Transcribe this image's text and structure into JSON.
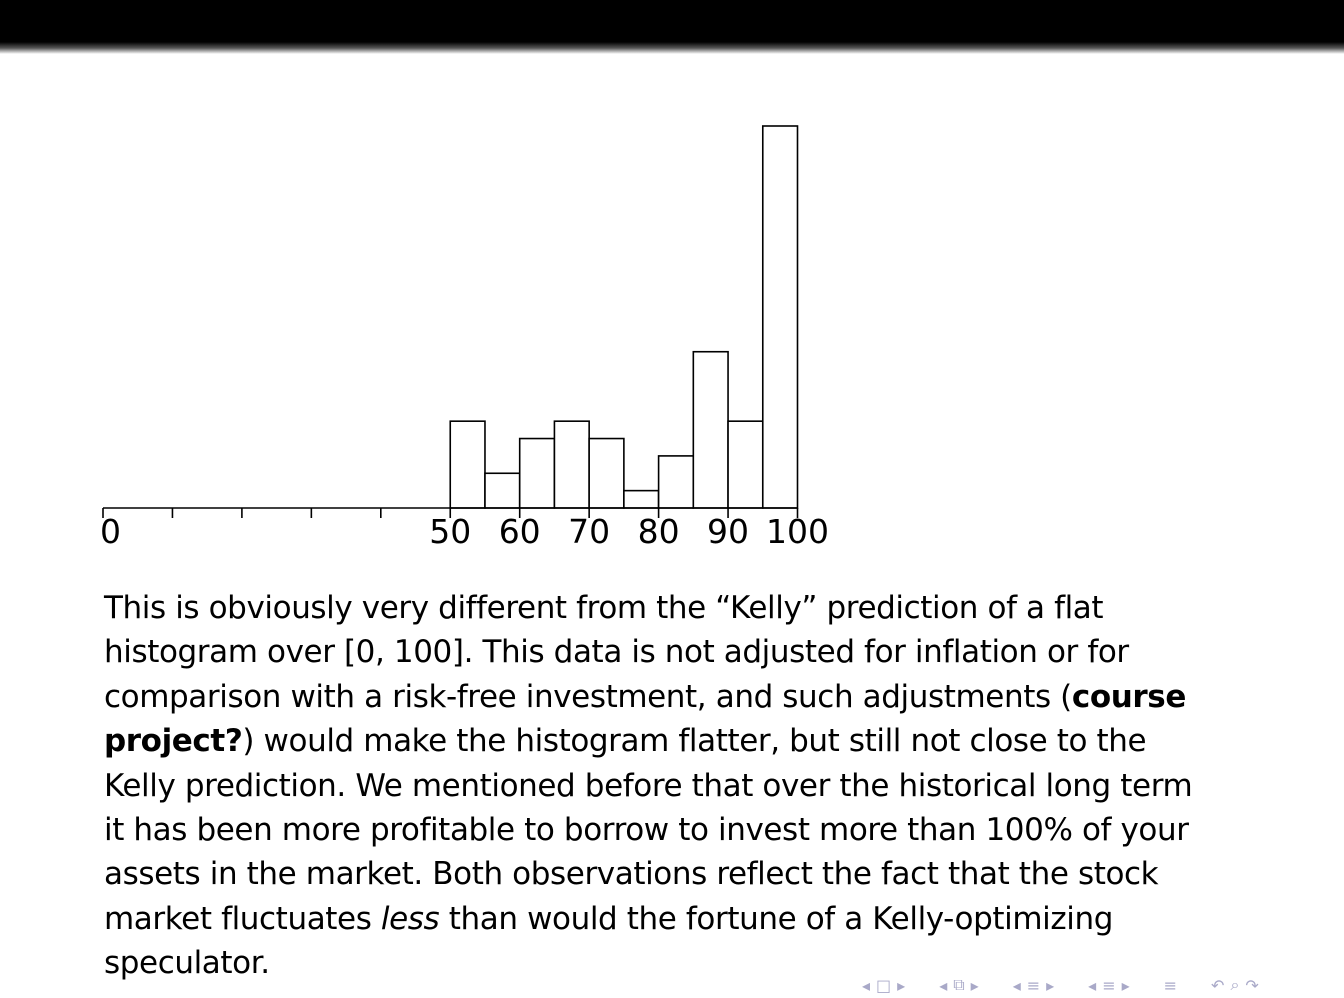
{
  "chart_data": {
    "type": "bar",
    "x_tick_labels": [
      "0",
      "50",
      "60",
      "70",
      "80",
      "90",
      "100"
    ],
    "x_ticks": [
      0,
      10,
      20,
      30,
      40,
      50,
      60,
      70,
      80,
      90,
      100
    ],
    "xlim": [
      0,
      100
    ],
    "bin_width": 5,
    "bins": [
      {
        "start": 50,
        "end": 55,
        "value": 5
      },
      {
        "start": 55,
        "end": 60,
        "value": 2
      },
      {
        "start": 60,
        "end": 65,
        "value": 4
      },
      {
        "start": 65,
        "end": 70,
        "value": 5
      },
      {
        "start": 70,
        "end": 75,
        "value": 4
      },
      {
        "start": 75,
        "end": 80,
        "value": 1
      },
      {
        "start": 80,
        "end": 85,
        "value": 3
      },
      {
        "start": 85,
        "end": 90,
        "value": 9
      },
      {
        "start": 90,
        "end": 95,
        "value": 5
      },
      {
        "start": 95,
        "end": 100,
        "value": 22
      }
    ],
    "ylim": [
      0,
      22
    ],
    "grid": false,
    "legend": "none"
  },
  "text": {
    "line1": "This is obviously very different from the “Kelly” prediction of a flat",
    "line2": "histogram over [0, 100]. This data is not adjusted for inflation or for",
    "line3_pre": "comparison with a risk-free investment, and such adjustments (",
    "line3_bold": "course",
    "line4_bold": "project?",
    "line4_post": ") would make the histogram flatter, but still not close to the",
    "line5": "Kelly prediction. We mentioned before that over the historical long term",
    "line6": "it has been more profitable to borrow to invest more than 100% of your",
    "line7": "assets in the market. Both observations reflect the fact that the stock",
    "line8_pre": "market fluctuates ",
    "line8_italic": "less",
    "line8_post": " than would the fortune of a Kelly-optimizing",
    "line9": "speculator."
  },
  "nav": {
    "colors": {
      "nav": "#a9a9c8"
    },
    "icons": [
      "frame-prev-icon",
      "frame-icon",
      "frame-next-icon",
      "subsection-prev-icon",
      "subsection-icon",
      "subsection-next-icon",
      "section-prev-icon",
      "section-icon",
      "section-next-icon",
      "subsubsection-prev-icon",
      "subsubsection-icon",
      "subsubsection-next-icon",
      "align-icon",
      "search-back-icon",
      "search-icon",
      "search-forward-icon"
    ]
  }
}
